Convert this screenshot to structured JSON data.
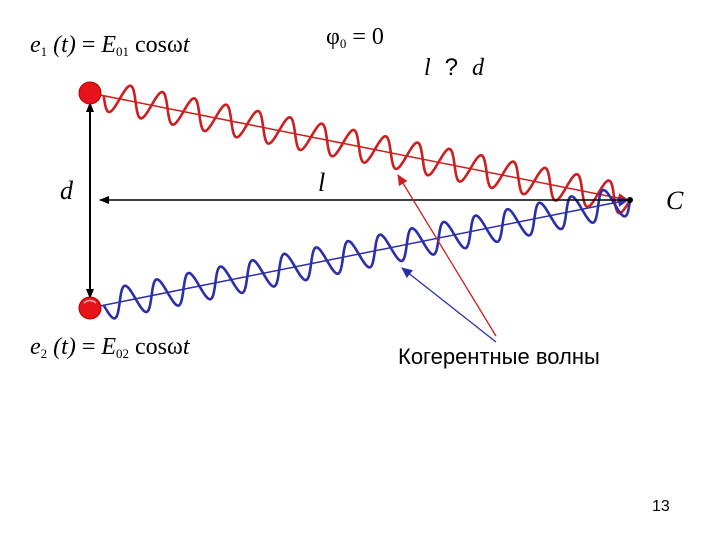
{
  "equations": {
    "e1": {
      "lhs": "e",
      "lhs_sub": "1",
      "arg": "(t)",
      "equals": "=",
      "rhs": "E",
      "rhs_sub": "01",
      "func": "cosω",
      "var": "t"
    },
    "e2": {
      "lhs": "e",
      "lhs_sub": "2",
      "arg": "(t)",
      "equals": "=",
      "rhs": "E",
      "rhs_sub": "02",
      "func": "cosω",
      "var": "t"
    },
    "phase": {
      "symbol": "φ",
      "sub": "0",
      "rest": "= 0"
    },
    "condition": {
      "left": "l",
      "mid": "?",
      "right": "d"
    }
  },
  "labels": {
    "d": "d",
    "l": "l",
    "C": "C",
    "caption": "Когерентные волны"
  },
  "page_number": "13",
  "colors": {
    "source": "#e8121b",
    "source_edge": "#b40000",
    "wave_red": "#cc1f1f",
    "wave_blue": "#2b2fa8",
    "ray_red": "#cc1f1f",
    "ray_blue": "#2b2fa8",
    "axis": "#000000"
  }
}
